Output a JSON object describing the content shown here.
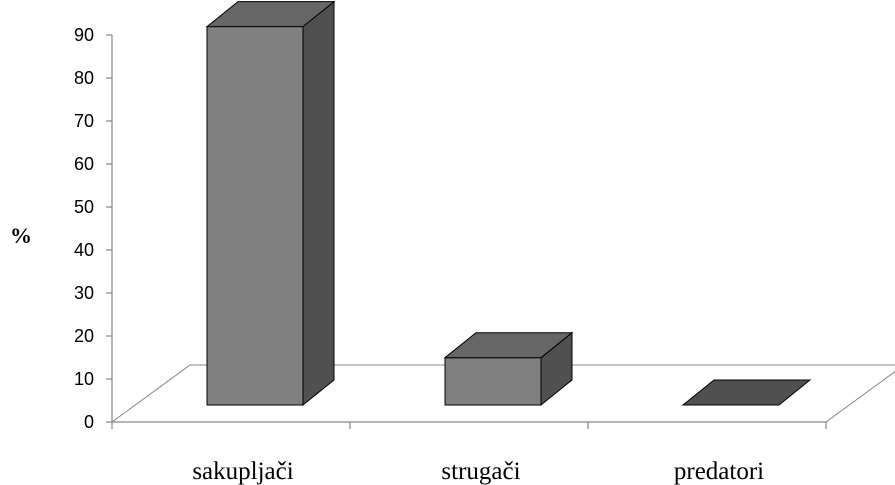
{
  "chart_data": {
    "type": "bar",
    "style": "3d",
    "title": "",
    "xlabel": "",
    "ylabel": "%",
    "categories": [
      "sakupljači",
      "strugači",
      "predatori"
    ],
    "values": [
      88,
      11,
      0
    ],
    "ylim": [
      0,
      90
    ],
    "yticks": [
      0,
      10,
      20,
      30,
      40,
      50,
      60,
      70,
      80,
      90
    ],
    "grid": false,
    "legend": "none",
    "colors": {
      "bar_front": "#808080",
      "bar_side": "#505050",
      "bar_top": "#666666",
      "floor": "#ffffff",
      "axis": "#868686"
    }
  }
}
